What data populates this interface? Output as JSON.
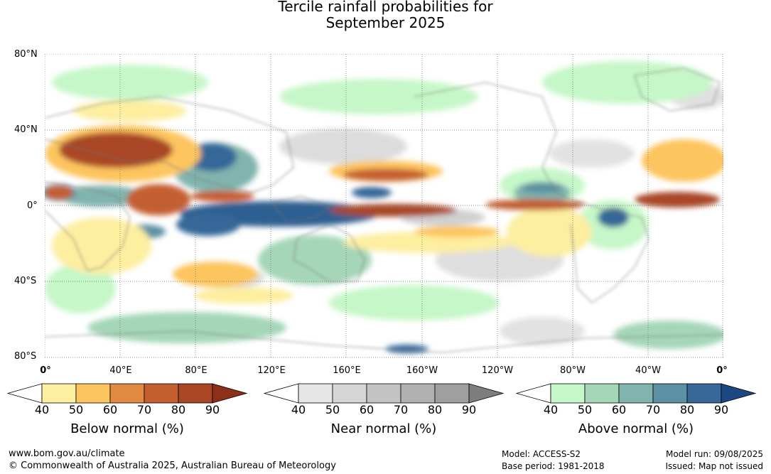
{
  "title": {
    "line1": "Tercile rainfall probabilities for",
    "line2": "September 2025"
  },
  "map": {
    "lat_labels": [
      "80°N",
      "40°N",
      "0°",
      "40°S",
      "80°S"
    ],
    "lon_labels": [
      "0°",
      "40°E",
      "80°E",
      "120°E",
      "160°E",
      "160°W",
      "120°W",
      "80°W",
      "40°W",
      "0°"
    ],
    "grid": "dotted",
    "land_outline_color": "#777777"
  },
  "legends": [
    {
      "title": "Below normal (%)",
      "ticks": [
        "40",
        "50",
        "60",
        "70",
        "80",
        "90"
      ],
      "colors": [
        "#ffffff",
        "#fdeea0",
        "#fdc55f",
        "#e08a44",
        "#c55f30",
        "#a94626",
        "#8c3018"
      ]
    },
    {
      "title": "Near normal (%)",
      "ticks": [
        "40",
        "50",
        "60",
        "70",
        "80",
        "90"
      ],
      "colors": [
        "#ffffff",
        "#e6e6e6",
        "#d5d5d5",
        "#c3c3c3",
        "#b1b1b1",
        "#9f9f9f",
        "#7d7d7d"
      ]
    },
    {
      "title": "Above normal (%)",
      "ticks": [
        "40",
        "50",
        "60",
        "70",
        "80",
        "90"
      ],
      "colors": [
        "#ffffff",
        "#c6f7c8",
        "#a5d6b8",
        "#81b4ae",
        "#5b91a3",
        "#366898",
        "#1b4882"
      ]
    }
  ],
  "footer": {
    "url": "www.bom.gov.au/climate",
    "copyright": "© Commonwealth of Australia 2025, Australian Bureau of Meteorology",
    "model": "Model: ACCESS-S2",
    "base_period": "Base period: 1981-2018",
    "model_run": "Model run: 09/08/2025",
    "issued": "Issued: Map not issued"
  }
}
